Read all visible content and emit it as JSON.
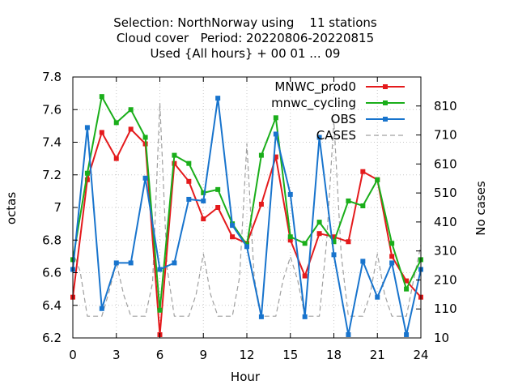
{
  "chart_data": {
    "type": "line",
    "title_lines": [
      "Selection: NorthNorway using    11 stations",
      "Cloud cover   Period: 20220806-20220815",
      "Used {All hours} + 00 01 ... 09"
    ],
    "xlabel": "Hour",
    "ylabel": "octas",
    "y2label": "No cases",
    "xlim": [
      0,
      24
    ],
    "ylim": [
      6.2,
      7.8
    ],
    "y2lim": [
      10,
      910
    ],
    "x_ticks": [
      0,
      3,
      6,
      9,
      12,
      15,
      18,
      21,
      24
    ],
    "y_ticks": [
      "6.2",
      "6.4",
      "6.6",
      "6.8",
      "7",
      "7.2",
      "7.4",
      "7.6",
      "7.8"
    ],
    "y2_ticks": [
      10,
      110,
      210,
      310,
      410,
      510,
      610,
      710,
      810
    ],
    "grid": true,
    "legend_position": "top-right",
    "x": [
      0,
      1,
      2,
      3,
      4,
      5,
      6,
      7,
      8,
      9,
      10,
      11,
      12,
      13,
      14,
      15,
      16,
      17,
      18,
      19,
      20,
      21,
      22,
      23,
      24
    ],
    "series": [
      {
        "name": "MNWC_prod0",
        "color": "#e41a1c",
        "axis": "y1",
        "style": "solid",
        "values": [
          6.45,
          7.17,
          7.46,
          7.3,
          7.48,
          7.39,
          6.22,
          7.27,
          7.16,
          6.93,
          7.0,
          6.82,
          6.78,
          7.02,
          7.31,
          6.8,
          6.58,
          6.84,
          6.82,
          6.79,
          7.22,
          7.17,
          6.7,
          6.55,
          6.45
        ]
      },
      {
        "name": "mnwc_cycling",
        "color": "#1aae1a",
        "axis": "y1",
        "style": "solid",
        "values": [
          6.68,
          7.21,
          7.68,
          7.52,
          7.6,
          7.43,
          6.37,
          7.32,
          7.27,
          7.09,
          7.11,
          6.9,
          6.77,
          7.32,
          7.55,
          6.82,
          6.78,
          6.91,
          6.79,
          7.04,
          7.01,
          7.17,
          6.78,
          6.5,
          6.68
        ]
      },
      {
        "name": "OBS",
        "color": "#1874cd",
        "axis": "y1",
        "style": "solid",
        "values": [
          6.62,
          7.49,
          6.38,
          6.66,
          6.66,
          7.18,
          6.62,
          6.66,
          7.05,
          7.04,
          7.67,
          6.89,
          6.76,
          6.33,
          7.45,
          7.08,
          6.33,
          7.43,
          6.71,
          6.22,
          6.67,
          6.45,
          6.66,
          6.22,
          6.62
        ]
      },
      {
        "name": "CASES",
        "color": "#a0a0a0",
        "axis": "y2",
        "style": "dashed",
        "x": [
          0,
          0.5,
          1,
          1.5,
          2,
          2.5,
          3,
          3.5,
          4,
          4.5,
          5,
          5.5,
          6,
          6.5,
          7,
          7.5,
          8,
          8.5,
          9,
          9.5,
          10,
          10.5,
          11,
          11.5,
          12,
          12.5,
          13,
          13.5,
          14,
          14.5,
          15,
          15.5,
          16,
          16.5,
          17,
          17.5,
          18,
          18.5,
          19,
          19.5,
          20,
          20.5,
          21,
          21.5,
          22,
          22.5,
          23,
          23.5,
          24
        ],
        "values": [
          310,
          240,
          85,
          85,
          85,
          170,
          270,
          160,
          85,
          85,
          85,
          200,
          820,
          250,
          85,
          85,
          85,
          160,
          300,
          160,
          85,
          85,
          85,
          220,
          680,
          220,
          85,
          85,
          85,
          210,
          290,
          210,
          85,
          85,
          85,
          340,
          760,
          300,
          85,
          85,
          85,
          160,
          300,
          160,
          85,
          85,
          85,
          210,
          330
        ]
      }
    ]
  }
}
